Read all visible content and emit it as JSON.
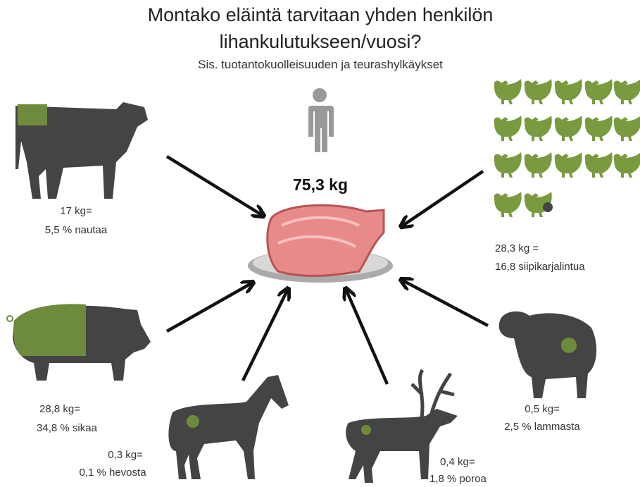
{
  "header": {
    "title": [
      "Montako eläintä tarvitaan yhden henkilön",
      "lihankulutukseen/vuosi?"
    ],
    "subtitle": "Sis. tuotantokuolleisuuden ja teurashylkäykset"
  },
  "total": "75,3 kg",
  "animals": {
    "cow": [
      "17 kg=",
      "5,5 % nautaa"
    ],
    "poultry": [
      "28,3 kg =",
      "16,8 siipikarjalintua"
    ],
    "pig": [
      "28,8 kg=",
      "34,8 % sikaa"
    ],
    "horse": [
      "0,3 kg=",
      "0,1 % hevosta"
    ],
    "reindeer": [
      "0,4 kg=",
      "1,8 % poroa"
    ],
    "sheep": [
      "0,5 kg=",
      "2,5 % lammasta"
    ]
  }
}
